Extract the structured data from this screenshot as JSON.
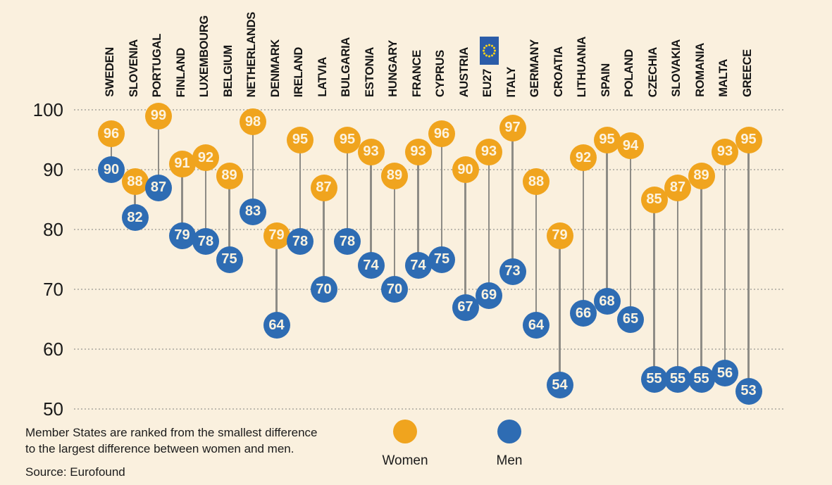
{
  "chart_data": {
    "type": "scatter",
    "variant": "lollipop-dumbbell",
    "title": "",
    "categories": [
      "SWEDEN",
      "SLOVENIA",
      "PORTUGAL",
      "FINLAND",
      "LUXEMBOURG",
      "BELGIUM",
      "NETHERLANDS",
      "DENMARK",
      "IRELAND",
      "LATVIA",
      "BULGARIA",
      "ESTONIA",
      "HUNGARY",
      "FRANCE",
      "CYPRUS",
      "AUSTRIA",
      "EU27",
      "ITALY",
      "GERMANY",
      "CROATIA",
      "LITHUANIA",
      "SPAIN",
      "POLAND",
      "CZECHIA",
      "SLOVAKIA",
      "ROMANIA",
      "MALTA",
      "GREECE"
    ],
    "series": [
      {
        "name": "Women",
        "color": "#F0A41E",
        "values": [
          96,
          88,
          99,
          91,
          92,
          89,
          98,
          79,
          95,
          87,
          95,
          93,
          89,
          93,
          96,
          90,
          93,
          97,
          88,
          79,
          92,
          95,
          94,
          85,
          87,
          89,
          93,
          95
        ]
      },
      {
        "name": "Men",
        "color": "#2E6CB3",
        "values": [
          90,
          82,
          87,
          79,
          78,
          75,
          83,
          64,
          78,
          70,
          78,
          74,
          70,
          74,
          75,
          67,
          69,
          73,
          64,
          54,
          66,
          68,
          65,
          55,
          55,
          55,
          56,
          53
        ]
      }
    ],
    "ylim": [
      50,
      100
    ],
    "yticks": [
      100,
      90,
      80,
      70,
      60,
      50
    ],
    "grid": "horizontal-dotted",
    "legend_position": "bottom-center",
    "eu_flag_category": "EU27",
    "ranking_note_line1": "Member States are ranked from the smallest difference",
    "ranking_note_line2": "to the largest difference between women and men.",
    "source": "Source: Eurofound"
  },
  "legend": {
    "women_label": "Women",
    "men_label": "Men"
  },
  "colors": {
    "background": "#FAF0DE",
    "women": "#F0A41E",
    "men": "#2E6CB3",
    "connector": "#8E8C86",
    "gridline": "#BCB8AE",
    "dot_text": "#FCF3E0",
    "flag_blue": "#2B5CA8",
    "flag_stars": "#FFD617",
    "text": "#1B1B1B"
  }
}
